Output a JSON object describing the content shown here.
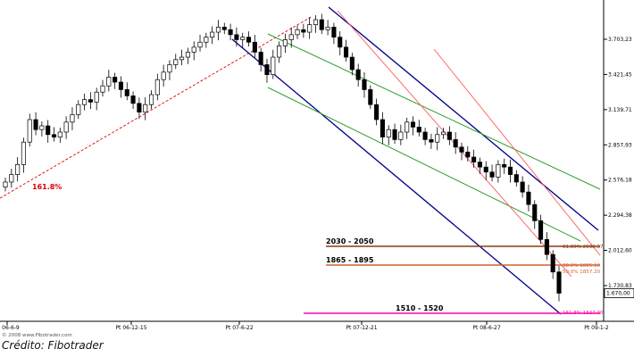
{
  "chart_data": {
    "type": "candlestick",
    "y_axis": {
      "position": "right",
      "tick_labels": [
        "3.703,23",
        "3.421,45",
        "3.139,71",
        "2.857,93",
        "2.576,18",
        "2.294,38",
        "2.012,60",
        "1.730,83"
      ],
      "tick_values": [
        3703.23,
        3421.45,
        3139.71,
        2857.93,
        2576.18,
        2294.38,
        2012.6,
        1730.83
      ],
      "last_price_label": "1.670,00",
      "last_price": 1670.0
    },
    "x_axis": {
      "tick_labels": [
        "Pt 06-6-9",
        "Pt 06-12-15",
        "Pt 07-6-22",
        "Pt 07-12-21",
        "Pt 08-6-27",
        "Pt 09-1-2"
      ],
      "tick_dates": [
        "2006-06-09",
        "2006-12-15",
        "2007-06-22",
        "2007-12-21",
        "2008-06-27",
        "2009-01-02"
      ]
    },
    "annotations": {
      "fib_extension": "161.8%",
      "zones": [
        {
          "label": "2030 - 2050",
          "fib_label": "61.80% 2032.37",
          "price": 2040
        },
        {
          "label": "1865 - 1895",
          "fib_label": "38.2% 1895.10",
          "price": 1895
        },
        {
          "label": "1510 - 1520",
          "fib_label": "161.8% 1537.00",
          "price": 1520
        }
      ],
      "extra_fib_label": "50.0% 1857.20",
      "watermark": "© 2008 www.Fibotrader.com"
    },
    "series": [
      {
        "name": "",
        "style": "weekly-candles",
        "approx_closes": [
          2560,
          2620,
          2700,
          2880,
          3060,
          2980,
          3010,
          2940,
          2920,
          2960,
          3040,
          3100,
          3180,
          3220,
          3200,
          3280,
          3330,
          3400,
          3360,
          3300,
          3250,
          3190,
          3120,
          3180,
          3260,
          3380,
          3440,
          3500,
          3540,
          3560,
          3600,
          3640,
          3680,
          3720,
          3760,
          3800,
          3780,
          3740,
          3700,
          3720,
          3680,
          3600,
          3500,
          3420,
          3560,
          3650,
          3700,
          3740,
          3780,
          3760,
          3820,
          3860,
          3780,
          3800,
          3720,
          3640,
          3560,
          3460,
          3380,
          3300,
          3180,
          3060,
          2920,
          2980,
          2900,
          2960,
          3040,
          3000,
          2960,
          2900,
          2880,
          2940,
          2960,
          2900,
          2840,
          2800,
          2760,
          2720,
          2680,
          2640,
          2600,
          2700,
          2680,
          2620,
          2560,
          2480,
          2380,
          2250,
          2100,
          1980,
          1840,
          1670
        ]
      }
    ]
  },
  "credit": "Crédito: Fibotrader",
  "colors": {
    "up_candle": "#ffffff",
    "down_candle": "#000000",
    "blue_channel": "#00008b",
    "green_channel": "#2e9e2e",
    "red_lines": "#ff5a5a",
    "fib_red_label": "#e00000",
    "zone_upper": "#8b3a0f",
    "zone_mid": "#d06030",
    "zone_low": "#ff00aa",
    "grid": "#cccccc"
  }
}
